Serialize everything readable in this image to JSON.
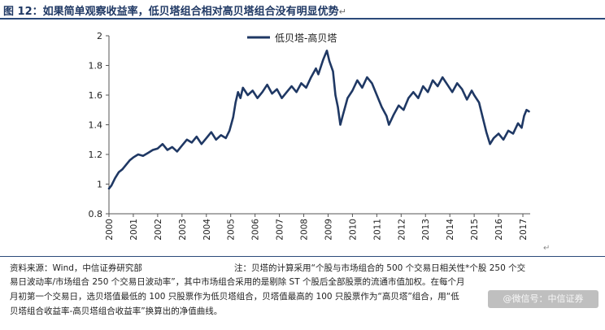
{
  "header": {
    "title": "图 12：如果简单观察收益率，低贝塔组合相对高贝塔组合没有明显优势",
    "title_mark": "↵"
  },
  "footer": {
    "source": "资料来源：Wind，中信证券研究部",
    "note_line1": "注：贝塔的计算采用“个股与市场组合的 500 个交易日相关性*个股 250 个交",
    "note_line2": "易日波动率/市场组合 250 个交易日波动率”，其中市场组合采用的是剔除 ST 个股后全部股票的流通市值加权。在每个月",
    "note_line3": "月初第一个交易日，选贝塔值最低的 100 只股票作为低贝塔组合，贝塔值最高的 100 只股票作为“高贝塔”组合，用“低",
    "note_line4": "贝塔组合收益率-高贝塔组合收益率”换算出的净值曲线。",
    "chart_tail_mark": "↵",
    "watermark": "@微信号：中信证券"
  },
  "chart_data": {
    "type": "line",
    "title": "",
    "xlabel": "",
    "ylabel": "",
    "ylim": [
      0.8,
      2.0
    ],
    "yticks": [
      "0.8",
      "1",
      "1.2",
      "1.4",
      "1.6",
      "1.8",
      "2"
    ],
    "xticks": [
      "2000",
      "2001",
      "2002",
      "2003",
      "2004",
      "2005",
      "2006",
      "2007",
      "2008",
      "2009",
      "2010",
      "2011",
      "2012",
      "2013",
      "2014",
      "2015",
      "2016",
      "2017"
    ],
    "xlim": [
      2000.0,
      2017.3
    ],
    "grid": false,
    "legend_position": "top-center",
    "series": [
      {
        "name": "低贝塔-高贝塔",
        "color": "#1f3864",
        "points": [
          [
            2000.0,
            0.97
          ],
          [
            2000.1,
            0.99
          ],
          [
            2000.25,
            1.04
          ],
          [
            2000.4,
            1.08
          ],
          [
            2000.55,
            1.1
          ],
          [
            2000.7,
            1.13
          ],
          [
            2000.85,
            1.16
          ],
          [
            2001.0,
            1.18
          ],
          [
            2001.2,
            1.2
          ],
          [
            2001.4,
            1.19
          ],
          [
            2001.6,
            1.21
          ],
          [
            2001.8,
            1.23
          ],
          [
            2002.0,
            1.24
          ],
          [
            2002.2,
            1.27
          ],
          [
            2002.4,
            1.23
          ],
          [
            2002.6,
            1.25
          ],
          [
            2002.8,
            1.22
          ],
          [
            2003.0,
            1.26
          ],
          [
            2003.2,
            1.3
          ],
          [
            2003.4,
            1.28
          ],
          [
            2003.6,
            1.32
          ],
          [
            2003.8,
            1.27
          ],
          [
            2004.0,
            1.31
          ],
          [
            2004.2,
            1.35
          ],
          [
            2004.4,
            1.3
          ],
          [
            2004.6,
            1.33
          ],
          [
            2004.8,
            1.31
          ],
          [
            2004.95,
            1.36
          ],
          [
            2005.1,
            1.45
          ],
          [
            2005.2,
            1.55
          ],
          [
            2005.3,
            1.62
          ],
          [
            2005.4,
            1.58
          ],
          [
            2005.5,
            1.65
          ],
          [
            2005.7,
            1.6
          ],
          [
            2005.9,
            1.63
          ],
          [
            2006.1,
            1.58
          ],
          [
            2006.3,
            1.62
          ],
          [
            2006.5,
            1.67
          ],
          [
            2006.7,
            1.61
          ],
          [
            2006.9,
            1.64
          ],
          [
            2007.1,
            1.58
          ],
          [
            2007.3,
            1.62
          ],
          [
            2007.5,
            1.66
          ],
          [
            2007.7,
            1.62
          ],
          [
            2007.9,
            1.68
          ],
          [
            2008.1,
            1.65
          ],
          [
            2008.3,
            1.72
          ],
          [
            2008.5,
            1.78
          ],
          [
            2008.6,
            1.74
          ],
          [
            2008.8,
            1.84
          ],
          [
            2008.95,
            1.9
          ],
          [
            2009.05,
            1.83
          ],
          [
            2009.2,
            1.76
          ],
          [
            2009.3,
            1.6
          ],
          [
            2009.4,
            1.52
          ],
          [
            2009.5,
            1.4
          ],
          [
            2009.6,
            1.46
          ],
          [
            2009.8,
            1.58
          ],
          [
            2010.0,
            1.63
          ],
          [
            2010.2,
            1.7
          ],
          [
            2010.4,
            1.65
          ],
          [
            2010.6,
            1.72
          ],
          [
            2010.8,
            1.68
          ],
          [
            2011.0,
            1.6
          ],
          [
            2011.2,
            1.52
          ],
          [
            2011.4,
            1.46
          ],
          [
            2011.5,
            1.4
          ],
          [
            2011.7,
            1.47
          ],
          [
            2011.9,
            1.53
          ],
          [
            2012.1,
            1.5
          ],
          [
            2012.3,
            1.58
          ],
          [
            2012.5,
            1.62
          ],
          [
            2012.7,
            1.58
          ],
          [
            2012.9,
            1.66
          ],
          [
            2013.1,
            1.62
          ],
          [
            2013.3,
            1.7
          ],
          [
            2013.5,
            1.66
          ],
          [
            2013.7,
            1.72
          ],
          [
            2013.9,
            1.67
          ],
          [
            2014.1,
            1.62
          ],
          [
            2014.3,
            1.68
          ],
          [
            2014.5,
            1.64
          ],
          [
            2014.7,
            1.57
          ],
          [
            2014.9,
            1.63
          ],
          [
            2015.0,
            1.6
          ],
          [
            2015.2,
            1.55
          ],
          [
            2015.35,
            1.45
          ],
          [
            2015.5,
            1.35
          ],
          [
            2015.65,
            1.27
          ],
          [
            2015.8,
            1.31
          ],
          [
            2016.0,
            1.34
          ],
          [
            2016.2,
            1.3
          ],
          [
            2016.4,
            1.36
          ],
          [
            2016.6,
            1.34
          ],
          [
            2016.8,
            1.41
          ],
          [
            2016.95,
            1.38
          ],
          [
            2017.05,
            1.46
          ],
          [
            2017.15,
            1.5
          ],
          [
            2017.25,
            1.49
          ]
        ]
      }
    ]
  }
}
